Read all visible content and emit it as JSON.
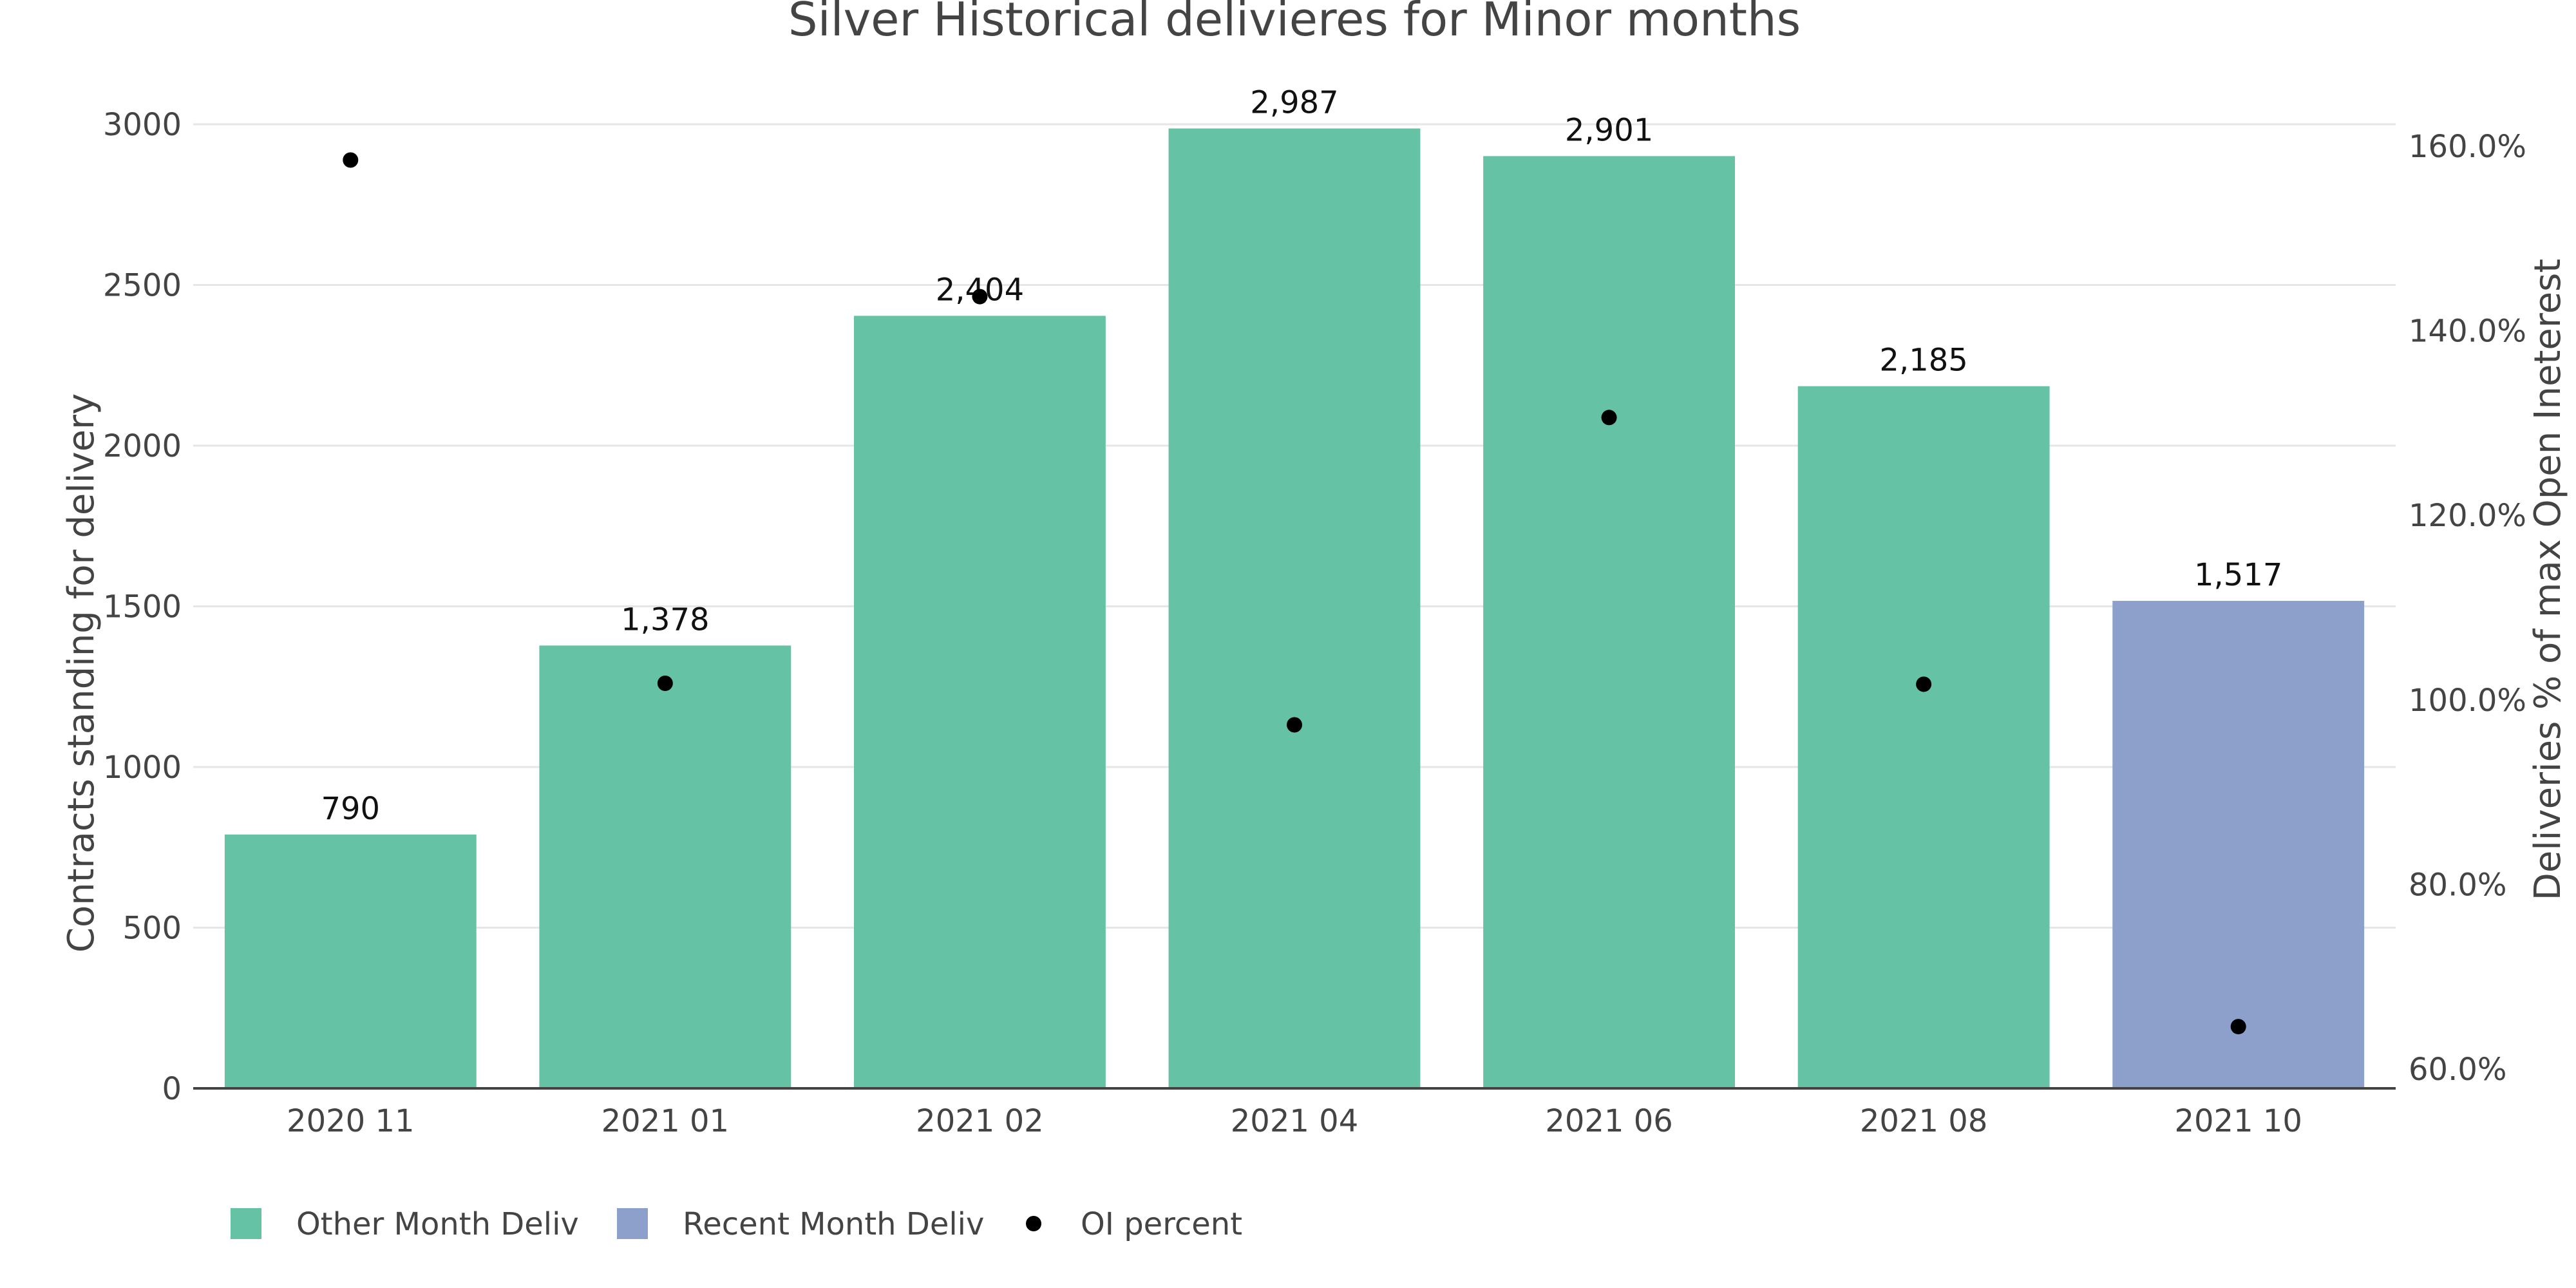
{
  "chart_data": {
    "type": "bar",
    "title": "Silver Historical delivieres for Minor months",
    "categories": [
      "2020 11",
      "2021 01",
      "2021 02",
      "2021 04",
      "2021 06",
      "2021 08",
      "2021 10"
    ],
    "series": [
      {
        "name": "Other Month Deliv",
        "type": "bar",
        "color": "#66c2a5",
        "values": [
          790,
          1378,
          2404,
          2987,
          2901,
          2185,
          null
        ],
        "labels": [
          "790",
          "1,378",
          "2,404",
          "2,987",
          "2,901",
          "2,185",
          null
        ]
      },
      {
        "name": "Recent Month Deliv",
        "type": "bar",
        "color": "#8da0cb",
        "values": [
          null,
          null,
          null,
          null,
          null,
          null,
          1517
        ],
        "labels": [
          null,
          null,
          null,
          null,
          null,
          null,
          "1,517"
        ]
      },
      {
        "name": "OI percent",
        "type": "scatter",
        "axis": "y2",
        "color": "#000000",
        "values": [
          158.5,
          101.8,
          143.7,
          97.3,
          130.6,
          101.7,
          64.6
        ]
      }
    ],
    "yaxis": {
      "title": "Contracts standing for delivery",
      "range": [
        0,
        3000
      ],
      "ticks": [
        0,
        500,
        1000,
        1500,
        2000,
        2500,
        3000
      ],
      "tick_labels": [
        "0",
        "500",
        "1000",
        "1500",
        "2000",
        "2500",
        "3000"
      ]
    },
    "y2axis": {
      "title": "Deliveries % of max Open Ineterest",
      "range": [
        56.0,
        160.0
      ],
      "ticks": [
        60,
        80,
        100,
        120,
        140,
        160
      ],
      "tick_labels": [
        "60.0%",
        "80.0%",
        "100.0%",
        "120.0%",
        "140.0%",
        "160.0%"
      ]
    },
    "legend": {
      "placement": "bottom-left",
      "items": [
        {
          "name": "Other Month Deliv",
          "marker": "square",
          "color": "#66c2a5"
        },
        {
          "name": "Recent Month Deliv",
          "marker": "square",
          "color": "#8da0cb"
        },
        {
          "name": "OI percent",
          "marker": "dot",
          "color": "#000000"
        }
      ]
    },
    "grid": true
  }
}
